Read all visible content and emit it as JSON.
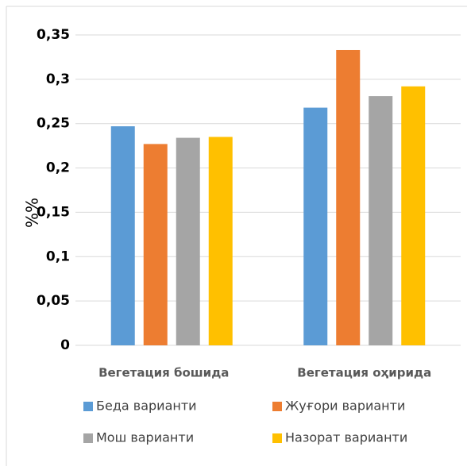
{
  "chart_data": {
    "type": "bar",
    "y_label": "%%",
    "categories": [
      "Вегетация бошида",
      "Вегетация оҳирида"
    ],
    "series": [
      {
        "name": "Беда варианти",
        "color": "#5b9bd5",
        "values": [
          0.247,
          0.268
        ]
      },
      {
        "name": "Жуғори варианти",
        "color": "#ed7d31",
        "values": [
          0.227,
          0.333
        ]
      },
      {
        "name": "Мош варианти",
        "color": "#a5a5a5",
        "values": [
          0.234,
          0.281
        ]
      },
      {
        "name": "Назорат варианти",
        "color": "#ffc000",
        "values": [
          0.235,
          0.292
        ]
      }
    ],
    "ylim": [
      0,
      0.35
    ],
    "yticks": [
      0,
      {
        "value": 0.05,
        "label": "0,05"
      },
      {
        "value": 0.1,
        "label": "0,1"
      },
      {
        "value": 0.15,
        "label": "0,15"
      },
      {
        "value": 0.2,
        "label": "0,2"
      },
      {
        "value": 0.25,
        "label": "0,25"
      },
      {
        "value": 0.3,
        "label": "0,3"
      },
      {
        "value": 0.35,
        "label": "0,35"
      }
    ],
    "grid": true,
    "legend": "bottom"
  }
}
